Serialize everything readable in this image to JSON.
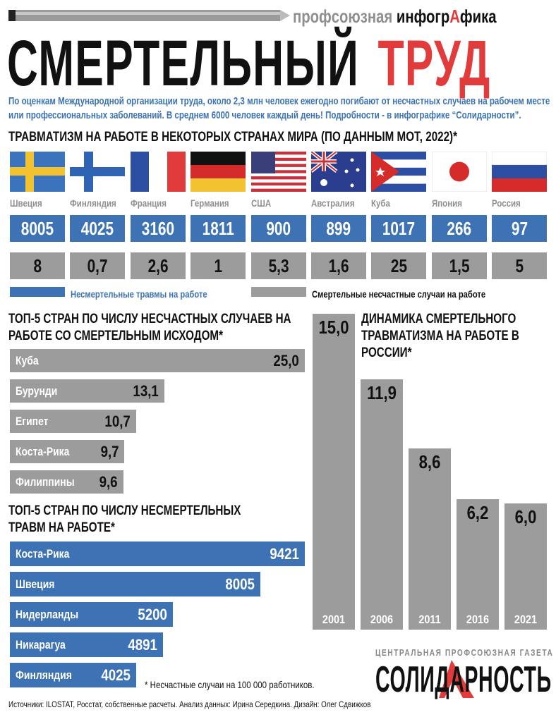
{
  "header": {
    "brand_gray": "профсоюзная",
    "brand_black_1": "инфогр",
    "brand_red": "А",
    "brand_black_2": "фика",
    "title_black": "СМЕРТЕЛЬНЫЙ",
    "title_red": "ТРУД",
    "intro": "По оценкам Международной организации труда, около 2,3 млн человек ежегодно погибают от несчастных случаев на рабочем месте или профессиональных заболеваний. В среднем 6000 человек каждый день! Подробности - в инфографике “Солидарности”."
  },
  "colors": {
    "blue": "#3d72b4",
    "gray": "#9c9c9c",
    "red": "#e23b3b"
  },
  "chart_data": [
    {
      "type": "table",
      "title": "ТРАВМАТИЗМ НА РАБОТЕ В НЕКОТОРЫХ СТРАНАХ МИРА (ПО ДАННЫМ МОТ, 2022)*",
      "categories": [
        "Швеция",
        "Финляндия",
        "Франция",
        "Германия",
        "США",
        "Австралия",
        "Куба",
        "Япония",
        "Россия"
      ],
      "flags": [
        "sweden-flag",
        "finland-flag",
        "france-flag",
        "germany-flag",
        "usa-flag",
        "australia-flag",
        "cuba-flag",
        "japan-flag",
        "russia-flag"
      ],
      "series": [
        {
          "name": "Несмертельные травмы на работе",
          "values": [
            "8005",
            "4025",
            "3160",
            "1811",
            "900",
            "899",
            "1017",
            "266",
            "97"
          ]
        },
        {
          "name": "Смертельные несчастные случаи на работе",
          "values": [
            "8",
            "0,7",
            "2,6",
            "1",
            "5,3",
            "1,6",
            "25",
            "1,5",
            "5"
          ]
        }
      ]
    },
    {
      "type": "bar",
      "orientation": "horizontal",
      "title": "ТОП-5 СТРАН ПО ЧИСЛУ НЕСЧАСТНЫХ СЛУЧАЕВ НА РАБОТЕ СО СМЕРТЕЛЬНЫМ ИСХОДОМ*",
      "categories": [
        "Куба",
        "Бурунди",
        "Египет",
        "Коста-Рика",
        "Филиппины"
      ],
      "values": [
        25.0,
        13.1,
        10.7,
        9.7,
        9.6
      ],
      "labels": [
        "25,0",
        "13,1",
        "10,7",
        "9,7",
        "9,6"
      ]
    },
    {
      "type": "bar",
      "orientation": "horizontal",
      "title": "ТОП-5 СТРАН ПО ЧИСЛУ НЕСМЕРТЕЛЬНЫХ ТРАВМ НА РАБОТЕ*",
      "categories": [
        "Коста-Рика",
        "Швеция",
        "Нидерланды",
        "Никарагуа",
        "Финляндия"
      ],
      "values": [
        9421,
        8005,
        5200,
        4891,
        4025
      ],
      "labels": [
        "9421",
        "8005",
        "5200",
        "4891",
        "4025"
      ]
    },
    {
      "type": "bar",
      "orientation": "vertical",
      "title": "ДИНАМИКА СМЕРТЕЛЬНОГО ТРАВМАТИЗМА НА РАБОТЕ В РОССИИ*",
      "categories": [
        "2001",
        "2006",
        "2011",
        "2016",
        "2021"
      ],
      "values": [
        15.0,
        11.9,
        8.6,
        6.2,
        6.0
      ],
      "labels": [
        "15,0",
        "11,9",
        "8,6",
        "6,2",
        "6,0"
      ]
    }
  ],
  "footer": {
    "note": "* Несчастные случаи на 100 000 работников.",
    "sources": "Источники: ILOSTAT, Росстат, собственные расчеты.  Анализ данных: Ирина Середкина. Дизайн: Олег Сдвижков",
    "logo_tagline": "ЦЕНТРАЛЬНАЯ ПРОФСОЮЗНАЯ ГАЗЕТА",
    "logo_name": "СОЛИДАРНОСТЬ"
  }
}
